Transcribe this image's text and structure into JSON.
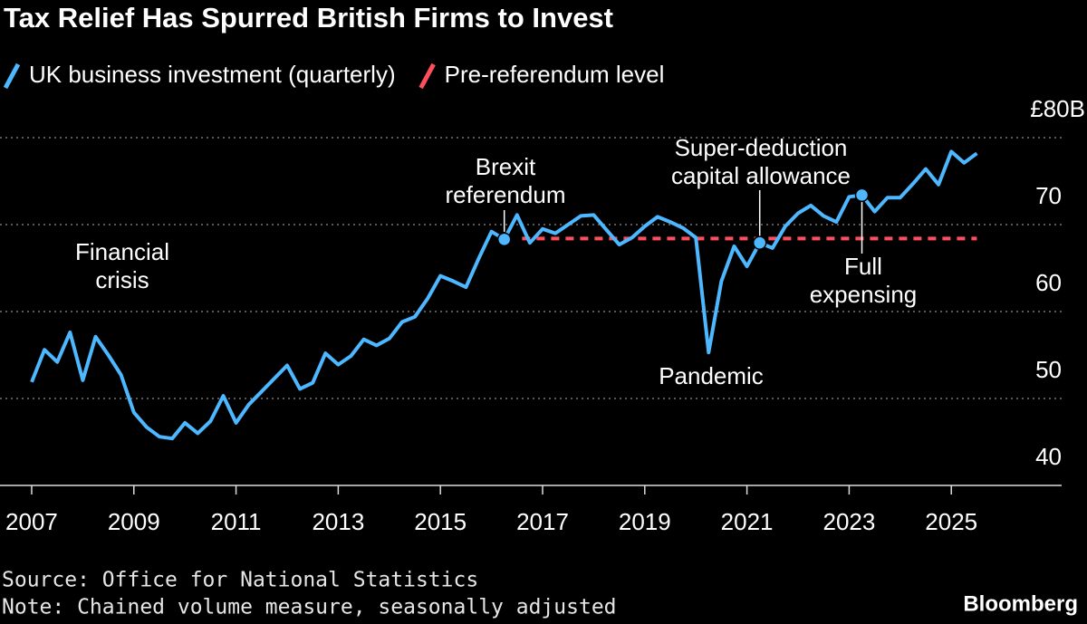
{
  "chart_data": {
    "type": "line",
    "title": "Tax Relief Has Spurred British Firms to Invest",
    "series": [
      {
        "name": "UK business investment (quarterly)",
        "color": "#4db8ff",
        "x": [
          2007,
          2007.25,
          2007.5,
          2007.75,
          2008,
          2008.25,
          2008.5,
          2008.75,
          2009,
          2009.25,
          2009.5,
          2009.75,
          2010,
          2010.25,
          2010.5,
          2010.75,
          2011,
          2011.25,
          2011.5,
          2011.75,
          2012,
          2012.25,
          2012.5,
          2012.75,
          2013,
          2013.25,
          2013.5,
          2013.75,
          2014,
          2014.25,
          2014.5,
          2014.75,
          2015,
          2015.25,
          2015.5,
          2015.75,
          2016,
          2016.25,
          2016.5,
          2016.75,
          2017,
          2017.25,
          2017.5,
          2017.75,
          2018,
          2018.25,
          2018.5,
          2018.75,
          2019,
          2019.25,
          2019.5,
          2019.75,
          2020,
          2020.25,
          2020.5,
          2020.75,
          2021,
          2021.25,
          2021.5,
          2021.75,
          2022,
          2022.25,
          2022.5,
          2022.75,
          2023,
          2023.25,
          2023.5,
          2023.75,
          2024,
          2024.25,
          2024.5,
          2024.75,
          2025,
          2025.25,
          2025.5
        ],
        "values": [
          51.9,
          55.6,
          54.2,
          57.6,
          52.1,
          57.1,
          55.0,
          52.7,
          48.4,
          46.7,
          45.6,
          45.4,
          47.2,
          46.0,
          47.4,
          50.3,
          47.2,
          49.3,
          50.8,
          52.3,
          53.8,
          51.1,
          51.8,
          55.2,
          53.9,
          54.9,
          56.8,
          56.1,
          56.9,
          58.8,
          59.4,
          61.5,
          64.1,
          63.5,
          62.8,
          66.1,
          69.2,
          68.3,
          71.1,
          67.9,
          69.5,
          69.0,
          70.0,
          71.0,
          71.1,
          69.4,
          67.7,
          68.5,
          69.8,
          70.9,
          70.3,
          69.6,
          68.5,
          55.3,
          63.5,
          67.5,
          65.2,
          67.9,
          67.3,
          69.8,
          71.3,
          72.2,
          71.0,
          70.3,
          73.2,
          73.4,
          71.5,
          73.1,
          73.1,
          74.7,
          76.4,
          74.6,
          78.4,
          77.1,
          78.2
        ]
      },
      {
        "name": "Pre-referendum level",
        "color": "#ff4f5e",
        "dashed": true,
        "x": [
          2016.6,
          2025.5
        ],
        "values": [
          68.4,
          68.4
        ]
      }
    ],
    "xlim": [
      2006.38,
      2026.06
    ],
    "xticks": [
      2007,
      2009,
      2011,
      2013,
      2015,
      2017,
      2019,
      2021,
      2023,
      2025
    ],
    "ylim": [
      40,
      80
    ],
    "yticks": [
      40,
      50,
      60,
      70,
      {
        "value": 80,
        "label": "£80B"
      }
    ],
    "grid": true,
    "annotations": [
      {
        "lines": [
          "Financial",
          "crisis"
        ]
      },
      {
        "lines": [
          "Brexit",
          "referendum"
        ],
        "x": 2016.25,
        "y": 68.3
      },
      {
        "lines": [
          "Pandemic"
        ]
      },
      {
        "lines": [
          "Super-deduction",
          "capital allowance"
        ],
        "x": 2021.25,
        "y": 67.9
      },
      {
        "lines": [
          "Full",
          "expensing"
        ],
        "x": 2023.25,
        "y": 73.4
      }
    ],
    "source": "Source: Office for National Statistics",
    "note": "Note: Chained volume measure, seasonally adjusted",
    "brand": "Bloomberg"
  }
}
